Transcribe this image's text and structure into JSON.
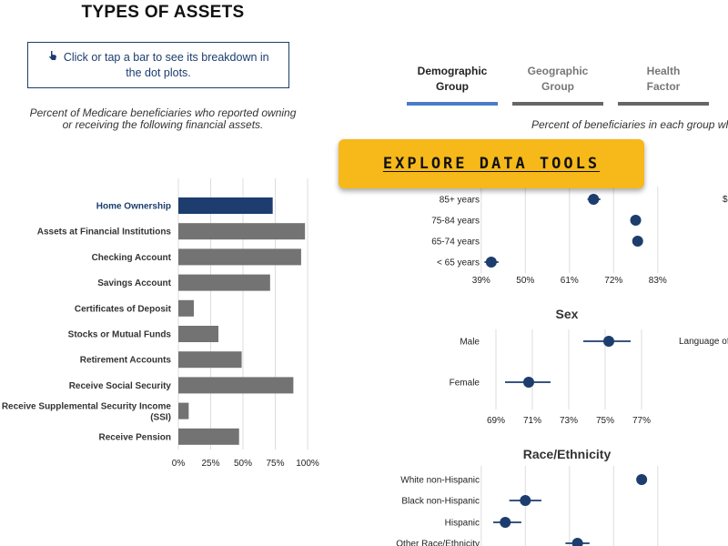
{
  "title": "TYPES OF ASSETS",
  "hint": {
    "icon": "pointer-hand-icon",
    "text": "Click or tap a bar to see its breakdown in the dot plots."
  },
  "left_subtitle": "Percent of Medicare beneficiaries who reported owning or receiving the following financial assets.",
  "tabs": [
    {
      "label_line1": "Demographic",
      "label_line2": "Group",
      "active": true
    },
    {
      "label_line1": "Geographic",
      "label_line2": "Group",
      "active": false
    },
    {
      "label_line1": "Health",
      "label_line2": "Factor",
      "active": false
    }
  ],
  "right_subtitle": "Percent of beneficiaries in each group who",
  "explore_button": "EXPLORE DATA TOOLS",
  "clipped_labels": [
    "$",
    "Language of"
  ],
  "colors": {
    "navy": "#1c3d6e",
    "bar_gray": "#737373",
    "tab_active": "#4a7bc8",
    "tab_inactive": "#666666",
    "button": "#f6b919"
  },
  "chart_data": [
    {
      "type": "bar",
      "orientation": "horizontal",
      "categories": [
        "Home Ownership",
        "Assets at Financial Institutions",
        "Checking Account",
        "Savings Account",
        "Certificates of Deposit",
        "Stocks or Mutual Funds",
        "Retirement Accounts",
        "Receive Social Security",
        "Receive Supplemental Security Income (SSI)",
        "Receive Pension"
      ],
      "values": [
        73,
        98,
        95,
        71,
        12,
        31,
        49,
        89,
        8,
        47
      ],
      "selected": "Home Ownership",
      "xlim": [
        0,
        100
      ],
      "xticks": [
        "0%",
        "25%",
        "50%",
        "75%",
        "100%"
      ],
      "grid": true
    },
    {
      "type": "scatter",
      "title": "",
      "categories": [
        "85+ years",
        "75-84 years",
        "65-74 years",
        "< 65 years"
      ],
      "values": [
        67,
        77.5,
        78,
        41.5
      ],
      "ci_low": [
        65.5,
        null,
        null,
        39.8
      ],
      "ci_high": [
        68.7,
        null,
        null,
        43.3
      ],
      "xlim": [
        37,
        86
      ],
      "xticks": [
        "39%",
        "50%",
        "61%",
        "72%",
        "83%"
      ],
      "tick_values": [
        39,
        50,
        61,
        72,
        83
      ],
      "grid": true
    },
    {
      "type": "scatter",
      "title": "Sex",
      "categories": [
        "Male",
        "Female"
      ],
      "values": [
        75.2,
        70.8
      ],
      "ci_low": [
        73.8,
        69.5
      ],
      "ci_high": [
        76.4,
        72.0
      ],
      "xlim": [
        68.7,
        77.7
      ],
      "xticks": [
        "69%",
        "71%",
        "73%",
        "75%",
        "77%"
      ],
      "tick_values": [
        69,
        71,
        73,
        75,
        77
      ],
      "grid": true
    },
    {
      "type": "scatter",
      "title": "Race/Ethnicity",
      "categories": [
        "White non-Hispanic",
        "Black non-Hispanic",
        "Hispanic",
        "Other Race/Ethnicity"
      ],
      "values": [
        79,
        50,
        45,
        63
      ],
      "ci_low": [
        null,
        46,
        42,
        60
      ],
      "ci_high": [
        null,
        54,
        49,
        66
      ],
      "xlim": [
        37,
        86
      ],
      "grid": true
    }
  ]
}
